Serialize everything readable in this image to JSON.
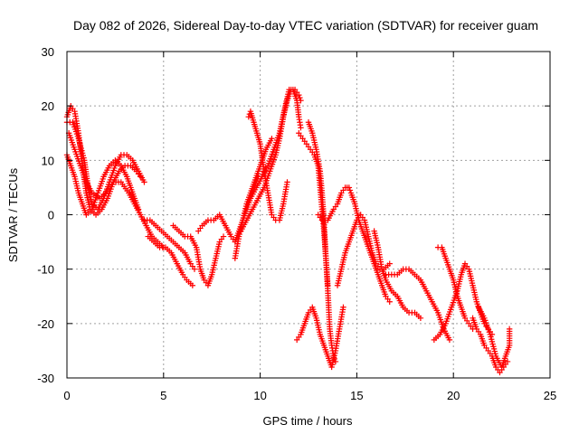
{
  "chart_data": {
    "type": "scatter",
    "title": "Day 082 of 2026, Sidereal Day-to-day VTEC variation (SDTVAR) for receiver guam",
    "xlabel": "GPS time / hours",
    "ylabel": "SDTVAR / TECUs",
    "xlim": [
      0,
      25
    ],
    "ylim": [
      -30,
      30
    ],
    "x_ticks": [
      0,
      5,
      10,
      15,
      20,
      25
    ],
    "y_ticks": [
      -30,
      -20,
      -10,
      0,
      10,
      20,
      30
    ],
    "grid": true,
    "legend": "none",
    "marker": "+",
    "color": "#ff0000",
    "series": [
      {
        "name": "track-1",
        "points": [
          [
            0.0,
            18
          ],
          [
            0.2,
            20
          ],
          [
            0.4,
            19
          ],
          [
            0.6,
            15
          ],
          [
            0.8,
            9
          ],
          [
            1.0,
            4
          ],
          [
            1.2,
            1
          ],
          [
            1.5,
            0
          ],
          [
            1.8,
            1
          ],
          [
            2.1,
            3
          ],
          [
            2.4,
            6
          ],
          [
            2.7,
            8
          ],
          [
            3.0,
            9
          ],
          [
            3.3,
            9
          ],
          [
            3.6,
            8
          ],
          [
            3.8,
            7
          ]
        ]
      },
      {
        "name": "track-2",
        "points": [
          [
            0.0,
            17
          ],
          [
            0.3,
            17
          ],
          [
            0.6,
            14
          ],
          [
            0.9,
            10
          ],
          [
            1.1,
            5
          ],
          [
            1.3,
            2
          ],
          [
            1.6,
            1
          ],
          [
            1.9,
            3
          ],
          [
            2.2,
            6
          ],
          [
            2.5,
            9
          ],
          [
            2.8,
            11
          ],
          [
            3.1,
            11
          ],
          [
            3.4,
            10
          ],
          [
            3.7,
            8
          ],
          [
            4.0,
            6
          ]
        ]
      },
      {
        "name": "track-3",
        "points": [
          [
            0.0,
            11
          ],
          [
            0.2,
            9
          ],
          [
            0.4,
            7
          ],
          [
            0.6,
            4
          ],
          [
            0.8,
            2
          ],
          [
            1.0,
            0
          ],
          [
            1.3,
            1
          ],
          [
            1.6,
            4
          ],
          [
            1.9,
            7
          ],
          [
            2.2,
            9
          ],
          [
            2.5,
            10
          ],
          [
            2.8,
            9
          ],
          [
            3.1,
            7
          ],
          [
            3.3,
            5
          ],
          [
            3.5,
            3
          ],
          [
            3.7,
            1
          ]
        ]
      },
      {
        "name": "track-4",
        "points": [
          [
            0.1,
            15
          ],
          [
            0.4,
            12
          ],
          [
            0.7,
            9
          ],
          [
            1.0,
            6
          ],
          [
            1.3,
            4
          ],
          [
            1.7,
            3
          ],
          [
            2.0,
            4
          ],
          [
            2.4,
            6
          ],
          [
            2.8,
            6
          ],
          [
            3.2,
            4
          ],
          [
            3.5,
            2
          ],
          [
            3.8,
            0
          ],
          [
            4.1,
            -2
          ],
          [
            4.4,
            -4
          ],
          [
            4.7,
            -5
          ],
          [
            5.0,
            -6
          ]
        ]
      },
      {
        "name": "track-5",
        "points": [
          [
            4.0,
            -1
          ],
          [
            4.3,
            -1
          ],
          [
            4.6,
            -2
          ],
          [
            4.9,
            -3
          ],
          [
            5.2,
            -4
          ],
          [
            5.5,
            -5
          ],
          [
            5.8,
            -6
          ],
          [
            6.1,
            -7
          ],
          [
            6.4,
            -9
          ],
          [
            6.6,
            -10
          ]
        ]
      },
      {
        "name": "track-6",
        "points": [
          [
            4.2,
            -4
          ],
          [
            4.5,
            -5
          ],
          [
            4.8,
            -6
          ],
          [
            5.1,
            -6
          ],
          [
            5.4,
            -7
          ],
          [
            5.7,
            -9
          ],
          [
            6.0,
            -11
          ],
          [
            6.2,
            -12
          ],
          [
            6.5,
            -13
          ]
        ]
      },
      {
        "name": "track-7",
        "points": [
          [
            5.5,
            -2
          ],
          [
            5.8,
            -3
          ],
          [
            6.1,
            -4
          ],
          [
            6.4,
            -4
          ],
          [
            6.7,
            -6
          ],
          [
            6.9,
            -10
          ],
          [
            7.1,
            -12
          ],
          [
            7.3,
            -13
          ],
          [
            7.5,
            -11
          ],
          [
            7.7,
            -8
          ],
          [
            7.9,
            -5
          ],
          [
            8.1,
            -4
          ]
        ]
      },
      {
        "name": "track-8",
        "points": [
          [
            6.8,
            -3
          ],
          [
            7.0,
            -2
          ],
          [
            7.3,
            -1
          ],
          [
            7.6,
            -1
          ],
          [
            7.9,
            0
          ],
          [
            8.2,
            -2
          ],
          [
            8.5,
            -4
          ],
          [
            8.7,
            -5
          ],
          [
            8.9,
            -3
          ],
          [
            9.1,
            -1
          ],
          [
            9.3,
            1
          ],
          [
            9.5,
            3
          ],
          [
            9.7,
            5
          ],
          [
            9.9,
            7
          ]
        ]
      },
      {
        "name": "track-9",
        "points": [
          [
            8.7,
            -8
          ],
          [
            8.9,
            -4
          ],
          [
            9.1,
            -1
          ],
          [
            9.3,
            2
          ],
          [
            9.5,
            4
          ],
          [
            9.7,
            6
          ],
          [
            9.9,
            8
          ],
          [
            10.1,
            10
          ],
          [
            10.3,
            12
          ],
          [
            10.6,
            14
          ]
        ]
      },
      {
        "name": "track-10",
        "points": [
          [
            9.0,
            -3
          ],
          [
            9.3,
            -1
          ],
          [
            9.6,
            1
          ],
          [
            9.9,
            3
          ],
          [
            10.2,
            5
          ],
          [
            10.5,
            8
          ],
          [
            10.8,
            11
          ],
          [
            11.0,
            14
          ],
          [
            11.2,
            18
          ],
          [
            11.4,
            21
          ],
          [
            11.6,
            23
          ],
          [
            11.8,
            23
          ],
          [
            12.0,
            22
          ],
          [
            12.1,
            21
          ]
        ]
      },
      {
        "name": "track-11",
        "points": [
          [
            9.5,
            3
          ],
          [
            9.8,
            5
          ],
          [
            10.1,
            7
          ],
          [
            10.4,
            9
          ],
          [
            10.7,
            12
          ],
          [
            11.0,
            15
          ],
          [
            11.3,
            20
          ],
          [
            11.5,
            23
          ],
          [
            11.7,
            23
          ],
          [
            11.9,
            21
          ],
          [
            12.0,
            18
          ],
          [
            12.1,
            16
          ]
        ]
      },
      {
        "name": "track-12",
        "points": [
          [
            9.4,
            18
          ],
          [
            9.5,
            19
          ],
          [
            10.0,
            13
          ],
          [
            10.2,
            8
          ],
          [
            10.4,
            4
          ],
          [
            10.6,
            0
          ],
          [
            10.8,
            -1
          ],
          [
            11.0,
            -1
          ],
          [
            11.2,
            2
          ],
          [
            11.4,
            6
          ]
        ]
      },
      {
        "name": "track-13",
        "points": [
          [
            12.0,
            15
          ],
          [
            12.2,
            14
          ],
          [
            12.4,
            13
          ],
          [
            12.6,
            12
          ],
          [
            12.8,
            11
          ],
          [
            13.0,
            9
          ],
          [
            13.1,
            5
          ],
          [
            13.2,
            1
          ],
          [
            13.3,
            -3
          ],
          [
            13.4,
            -8
          ],
          [
            13.5,
            -13
          ]
        ]
      },
      {
        "name": "track-14",
        "points": [
          [
            12.5,
            17
          ],
          [
            12.7,
            15
          ],
          [
            12.9,
            12
          ],
          [
            13.1,
            8
          ],
          [
            13.2,
            4
          ],
          [
            13.3,
            -1
          ],
          [
            13.4,
            -8
          ],
          [
            13.5,
            -14
          ],
          [
            13.6,
            -21
          ],
          [
            13.7,
            -24
          ],
          [
            13.8,
            -26
          ],
          [
            13.9,
            -27
          ]
        ]
      },
      {
        "name": "track-15",
        "points": [
          [
            11.9,
            -23
          ],
          [
            12.1,
            -22
          ],
          [
            12.3,
            -20
          ],
          [
            12.5,
            -18
          ],
          [
            12.7,
            -17
          ],
          [
            12.9,
            -19
          ],
          [
            13.1,
            -22
          ],
          [
            13.3,
            -24
          ],
          [
            13.5,
            -26
          ],
          [
            13.7,
            -28
          ],
          [
            13.9,
            -25
          ],
          [
            14.1,
            -21
          ],
          [
            14.3,
            -17
          ]
        ]
      },
      {
        "name": "track-16",
        "points": [
          [
            13.0,
            0
          ],
          [
            13.2,
            -1
          ],
          [
            13.5,
            -1
          ],
          [
            13.8,
            1
          ],
          [
            14.0,
            2
          ],
          [
            14.2,
            4
          ],
          [
            14.4,
            5
          ],
          [
            14.5,
            5
          ]
        ]
      },
      {
        "name": "track-17",
        "points": [
          [
            14.6,
            5
          ],
          [
            14.7,
            4
          ],
          [
            14.9,
            2
          ],
          [
            15.1,
            -1
          ],
          [
            15.3,
            -3
          ],
          [
            15.5,
            -5
          ],
          [
            15.7,
            -7
          ],
          [
            15.9,
            -9
          ],
          [
            16.1,
            -11
          ],
          [
            16.3,
            -13
          ],
          [
            16.5,
            -15
          ],
          [
            16.7,
            -16
          ]
        ]
      },
      {
        "name": "track-18",
        "points": [
          [
            14.0,
            -13
          ],
          [
            14.2,
            -10
          ],
          [
            14.4,
            -7
          ],
          [
            14.6,
            -5
          ],
          [
            14.8,
            -3
          ],
          [
            15.0,
            -1
          ],
          [
            15.2,
            0
          ],
          [
            15.4,
            -1
          ],
          [
            15.6,
            -4
          ],
          [
            15.8,
            -7
          ],
          [
            16.0,
            -9
          ],
          [
            16.2,
            -10
          ],
          [
            16.4,
            -10
          ],
          [
            16.7,
            -9
          ]
        ]
      },
      {
        "name": "track-19",
        "points": [
          [
            15.9,
            -3
          ],
          [
            16.1,
            -6
          ],
          [
            16.3,
            -10
          ],
          [
            16.5,
            -12
          ],
          [
            16.8,
            -14
          ],
          [
            17.1,
            -15
          ],
          [
            17.4,
            -17
          ],
          [
            17.7,
            -18
          ],
          [
            18.0,
            -18
          ],
          [
            18.3,
            -19
          ]
        ]
      },
      {
        "name": "track-20",
        "points": [
          [
            16.5,
            -11
          ],
          [
            16.8,
            -11
          ],
          [
            17.1,
            -11
          ],
          [
            17.4,
            -10
          ],
          [
            17.7,
            -10
          ],
          [
            18.0,
            -11
          ],
          [
            18.3,
            -12
          ],
          [
            18.6,
            -14
          ],
          [
            18.9,
            -16
          ],
          [
            19.2,
            -18
          ],
          [
            19.5,
            -21
          ],
          [
            19.8,
            -23
          ]
        ]
      },
      {
        "name": "track-21",
        "points": [
          [
            19.2,
            -6
          ],
          [
            19.4,
            -6
          ],
          [
            19.6,
            -8
          ],
          [
            19.8,
            -10
          ],
          [
            20.0,
            -12
          ],
          [
            20.2,
            -15
          ],
          [
            20.4,
            -17
          ],
          [
            20.6,
            -19
          ],
          [
            20.8,
            -20
          ],
          [
            21.0,
            -21
          ]
        ]
      },
      {
        "name": "track-22",
        "points": [
          [
            19.0,
            -23
          ],
          [
            19.3,
            -22
          ],
          [
            19.6,
            -20
          ],
          [
            19.9,
            -17
          ],
          [
            20.2,
            -14
          ],
          [
            20.4,
            -11
          ],
          [
            20.6,
            -9
          ],
          [
            20.8,
            -10
          ],
          [
            21.0,
            -13
          ],
          [
            21.2,
            -16
          ],
          [
            21.4,
            -18
          ],
          [
            21.6,
            -20
          ],
          [
            21.8,
            -21
          ],
          [
            22.0,
            -22
          ]
        ]
      },
      {
        "name": "track-23",
        "points": [
          [
            21.0,
            -19
          ],
          [
            21.2,
            -21
          ],
          [
            21.4,
            -22
          ],
          [
            21.6,
            -24
          ],
          [
            21.8,
            -25
          ],
          [
            22.0,
            -26
          ],
          [
            22.2,
            -28
          ],
          [
            22.4,
            -29
          ],
          [
            22.6,
            -28
          ],
          [
            22.8,
            -27
          ]
        ]
      },
      {
        "name": "track-24",
        "points": [
          [
            21.3,
            -17
          ],
          [
            21.6,
            -19
          ],
          [
            21.9,
            -22
          ],
          [
            22.2,
            -26
          ],
          [
            22.5,
            -28
          ],
          [
            22.7,
            -26
          ],
          [
            22.9,
            -24
          ],
          [
            22.9,
            -21
          ]
        ]
      }
    ]
  }
}
